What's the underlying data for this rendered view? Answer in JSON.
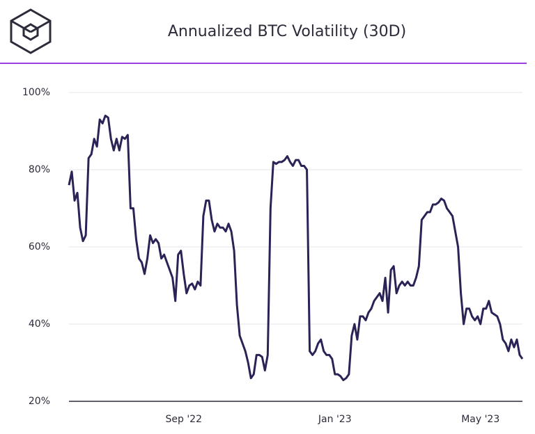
{
  "chart_data": {
    "type": "line",
    "title": "Annualized BTC Volatility (30D)",
    "categories": [
      null,
      null,
      null,
      null,
      null,
      null,
      null,
      null,
      null,
      null,
      null,
      null,
      null,
      null,
      null,
      null,
      null,
      null,
      null,
      null,
      null,
      null,
      null,
      null,
      null,
      null,
      null,
      null,
      null,
      null,
      null,
      null,
      null,
      null,
      null,
      null,
      null,
      null,
      null,
      null,
      null,
      "Sep '22",
      null,
      null,
      null,
      null,
      null,
      null,
      null,
      null,
      null,
      null,
      null,
      null,
      null,
      null,
      null,
      null,
      null,
      null,
      null,
      null,
      null,
      null,
      null,
      null,
      null,
      null,
      null,
      null,
      null,
      null,
      null,
      null,
      null,
      null,
      null,
      null,
      null,
      null,
      null,
      null,
      null,
      null,
      null,
      null,
      null,
      null,
      null,
      null,
      null,
      null,
      null,
      null,
      null,
      "Jan '23",
      null,
      null,
      null,
      null,
      null,
      null,
      null,
      null,
      null,
      null,
      null,
      null,
      null,
      null,
      null,
      null,
      null,
      null,
      null,
      null,
      null,
      null,
      null,
      null,
      null,
      null,
      null,
      null,
      null,
      null,
      null,
      null,
      null,
      null,
      null,
      null,
      null,
      null,
      null,
      null,
      null,
      null,
      null,
      null,
      null,
      null,
      null,
      null,
      null,
      null,
      null,
      "May '23",
      null,
      null,
      null,
      null,
      null,
      null,
      null,
      null,
      null,
      null,
      null,
      null,
      null,
      null,
      null
    ],
    "values": [
      76,
      79.5,
      72,
      74,
      65,
      61.5,
      63,
      83,
      84,
      88,
      86,
      93,
      92,
      94,
      93.5,
      88,
      85,
      88,
      85,
      88.5,
      88,
      89,
      70,
      70,
      62,
      57,
      56,
      53,
      57,
      63,
      61,
      62,
      61,
      57,
      58,
      56,
      54,
      52,
      46,
      58,
      59,
      53,
      48,
      50,
      50.5,
      49,
      51,
      50,
      68,
      72,
      72,
      67,
      64,
      66,
      65,
      65,
      64,
      66,
      64,
      59,
      45,
      37,
      35,
      33,
      30,
      26,
      27,
      32,
      32,
      31.5,
      28,
      32,
      70,
      82,
      81.5,
      82,
      82,
      82.5,
      83.5,
      82,
      81,
      82.5,
      82.5,
      81,
      81,
      80,
      33,
      32,
      33,
      35,
      36,
      33,
      32,
      32,
      31,
      27,
      27,
      26.5,
      25.5,
      26,
      27,
      37,
      40,
      36,
      42,
      42,
      41,
      43,
      44,
      46,
      47,
      48,
      46,
      52,
      43,
      54,
      55,
      48,
      50,
      51,
      50,
      51,
      50,
      50,
      52,
      55,
      67,
      68,
      69,
      69,
      71,
      71,
      71.5,
      72.5,
      72,
      70,
      69,
      68,
      64,
      60,
      48,
      40,
      44,
      44,
      42,
      41,
      42,
      40,
      44,
      44,
      46,
      43,
      42.5,
      42,
      40,
      36,
      35,
      33,
      36,
      34,
      36,
      32,
      31
    ],
    "color": "#2a2356",
    "ylim": [
      20,
      100
    ],
    "yticks": [
      {
        "value": 20,
        "label": "20%"
      },
      {
        "value": 40,
        "label": "40%"
      },
      {
        "value": 60,
        "label": "60%"
      },
      {
        "value": 80,
        "label": "80%"
      },
      {
        "value": 100,
        "label": "100%"
      }
    ],
    "grid": true
  }
}
